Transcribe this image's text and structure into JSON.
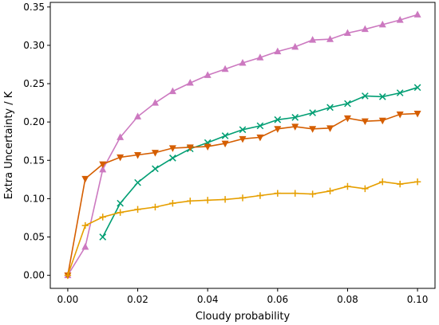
{
  "chart_data": {
    "type": "line",
    "title": "",
    "xlabel": "Cloudy probability",
    "ylabel": "Extra Uncertainty / K",
    "xlim": [
      -0.005,
      0.105
    ],
    "ylim": [
      -0.017,
      0.356
    ],
    "xticks": [
      0.0,
      0.02,
      0.04,
      0.06,
      0.08,
      0.1
    ],
    "xtick_labels": [
      "0.00",
      "0.02",
      "0.04",
      "0.06",
      "0.08",
      "0.10"
    ],
    "yticks": [
      0.0,
      0.05,
      0.1,
      0.15,
      0.2,
      0.25,
      0.3,
      0.35
    ],
    "ytick_labels": [
      "0.00",
      "0.05",
      "0.10",
      "0.15",
      "0.20",
      "0.25",
      "0.30",
      "0.35"
    ],
    "grid": false,
    "legend": "none",
    "series": [
      {
        "color": "#cc79c0",
        "marker": "triangle-up",
        "x": [
          0.0,
          0.005,
          0.01,
          0.015,
          0.02,
          0.025,
          0.03,
          0.035,
          0.04,
          0.045,
          0.05,
          0.055,
          0.06,
          0.065,
          0.07,
          0.075,
          0.08,
          0.085,
          0.09,
          0.095,
          0.1
        ],
        "y": [
          0.0,
          0.037,
          0.138,
          0.18,
          0.207,
          0.225,
          0.24,
          0.251,
          0.261,
          0.269,
          0.277,
          0.284,
          0.292,
          0.298,
          0.307,
          0.308,
          0.316,
          0.321,
          0.327,
          0.333,
          0.34
        ]
      },
      {
        "color": "#009e73",
        "marker": "x",
        "x": [
          0.01,
          0.015,
          0.02,
          0.025,
          0.03,
          0.035,
          0.04,
          0.045,
          0.05,
          0.055,
          0.06,
          0.065,
          0.07,
          0.075,
          0.08,
          0.085,
          0.09,
          0.095,
          0.1
        ],
        "y": [
          0.05,
          0.094,
          0.121,
          0.139,
          0.153,
          0.165,
          0.173,
          0.182,
          0.19,
          0.195,
          0.203,
          0.206,
          0.212,
          0.219,
          0.224,
          0.234,
          0.233,
          0.238,
          0.245
        ]
      },
      {
        "color": "#d55e00",
        "marker": "triangle-down",
        "x": [
          0.0,
          0.005,
          0.01,
          0.015,
          0.02,
          0.025,
          0.03,
          0.035,
          0.04,
          0.045,
          0.05,
          0.055,
          0.06,
          0.065,
          0.07,
          0.075,
          0.08,
          0.085,
          0.09,
          0.095,
          0.1
        ],
        "y": [
          0.0,
          0.126,
          0.145,
          0.154,
          0.157,
          0.16,
          0.166,
          0.167,
          0.168,
          0.172,
          0.178,
          0.18,
          0.191,
          0.194,
          0.191,
          0.192,
          0.205,
          0.201,
          0.202,
          0.21,
          0.211
        ]
      },
      {
        "color": "#e69f00",
        "marker": "plus",
        "x": [
          0.0,
          0.005,
          0.01,
          0.015,
          0.02,
          0.025,
          0.03,
          0.035,
          0.04,
          0.045,
          0.05,
          0.055,
          0.06,
          0.065,
          0.07,
          0.075,
          0.08,
          0.085,
          0.09,
          0.095,
          0.1
        ],
        "y": [
          0.0,
          0.065,
          0.076,
          0.082,
          0.086,
          0.089,
          0.094,
          0.097,
          0.098,
          0.099,
          0.101,
          0.104,
          0.107,
          0.107,
          0.106,
          0.11,
          0.116,
          0.113,
          0.122,
          0.119,
          0.122
        ]
      }
    ]
  }
}
